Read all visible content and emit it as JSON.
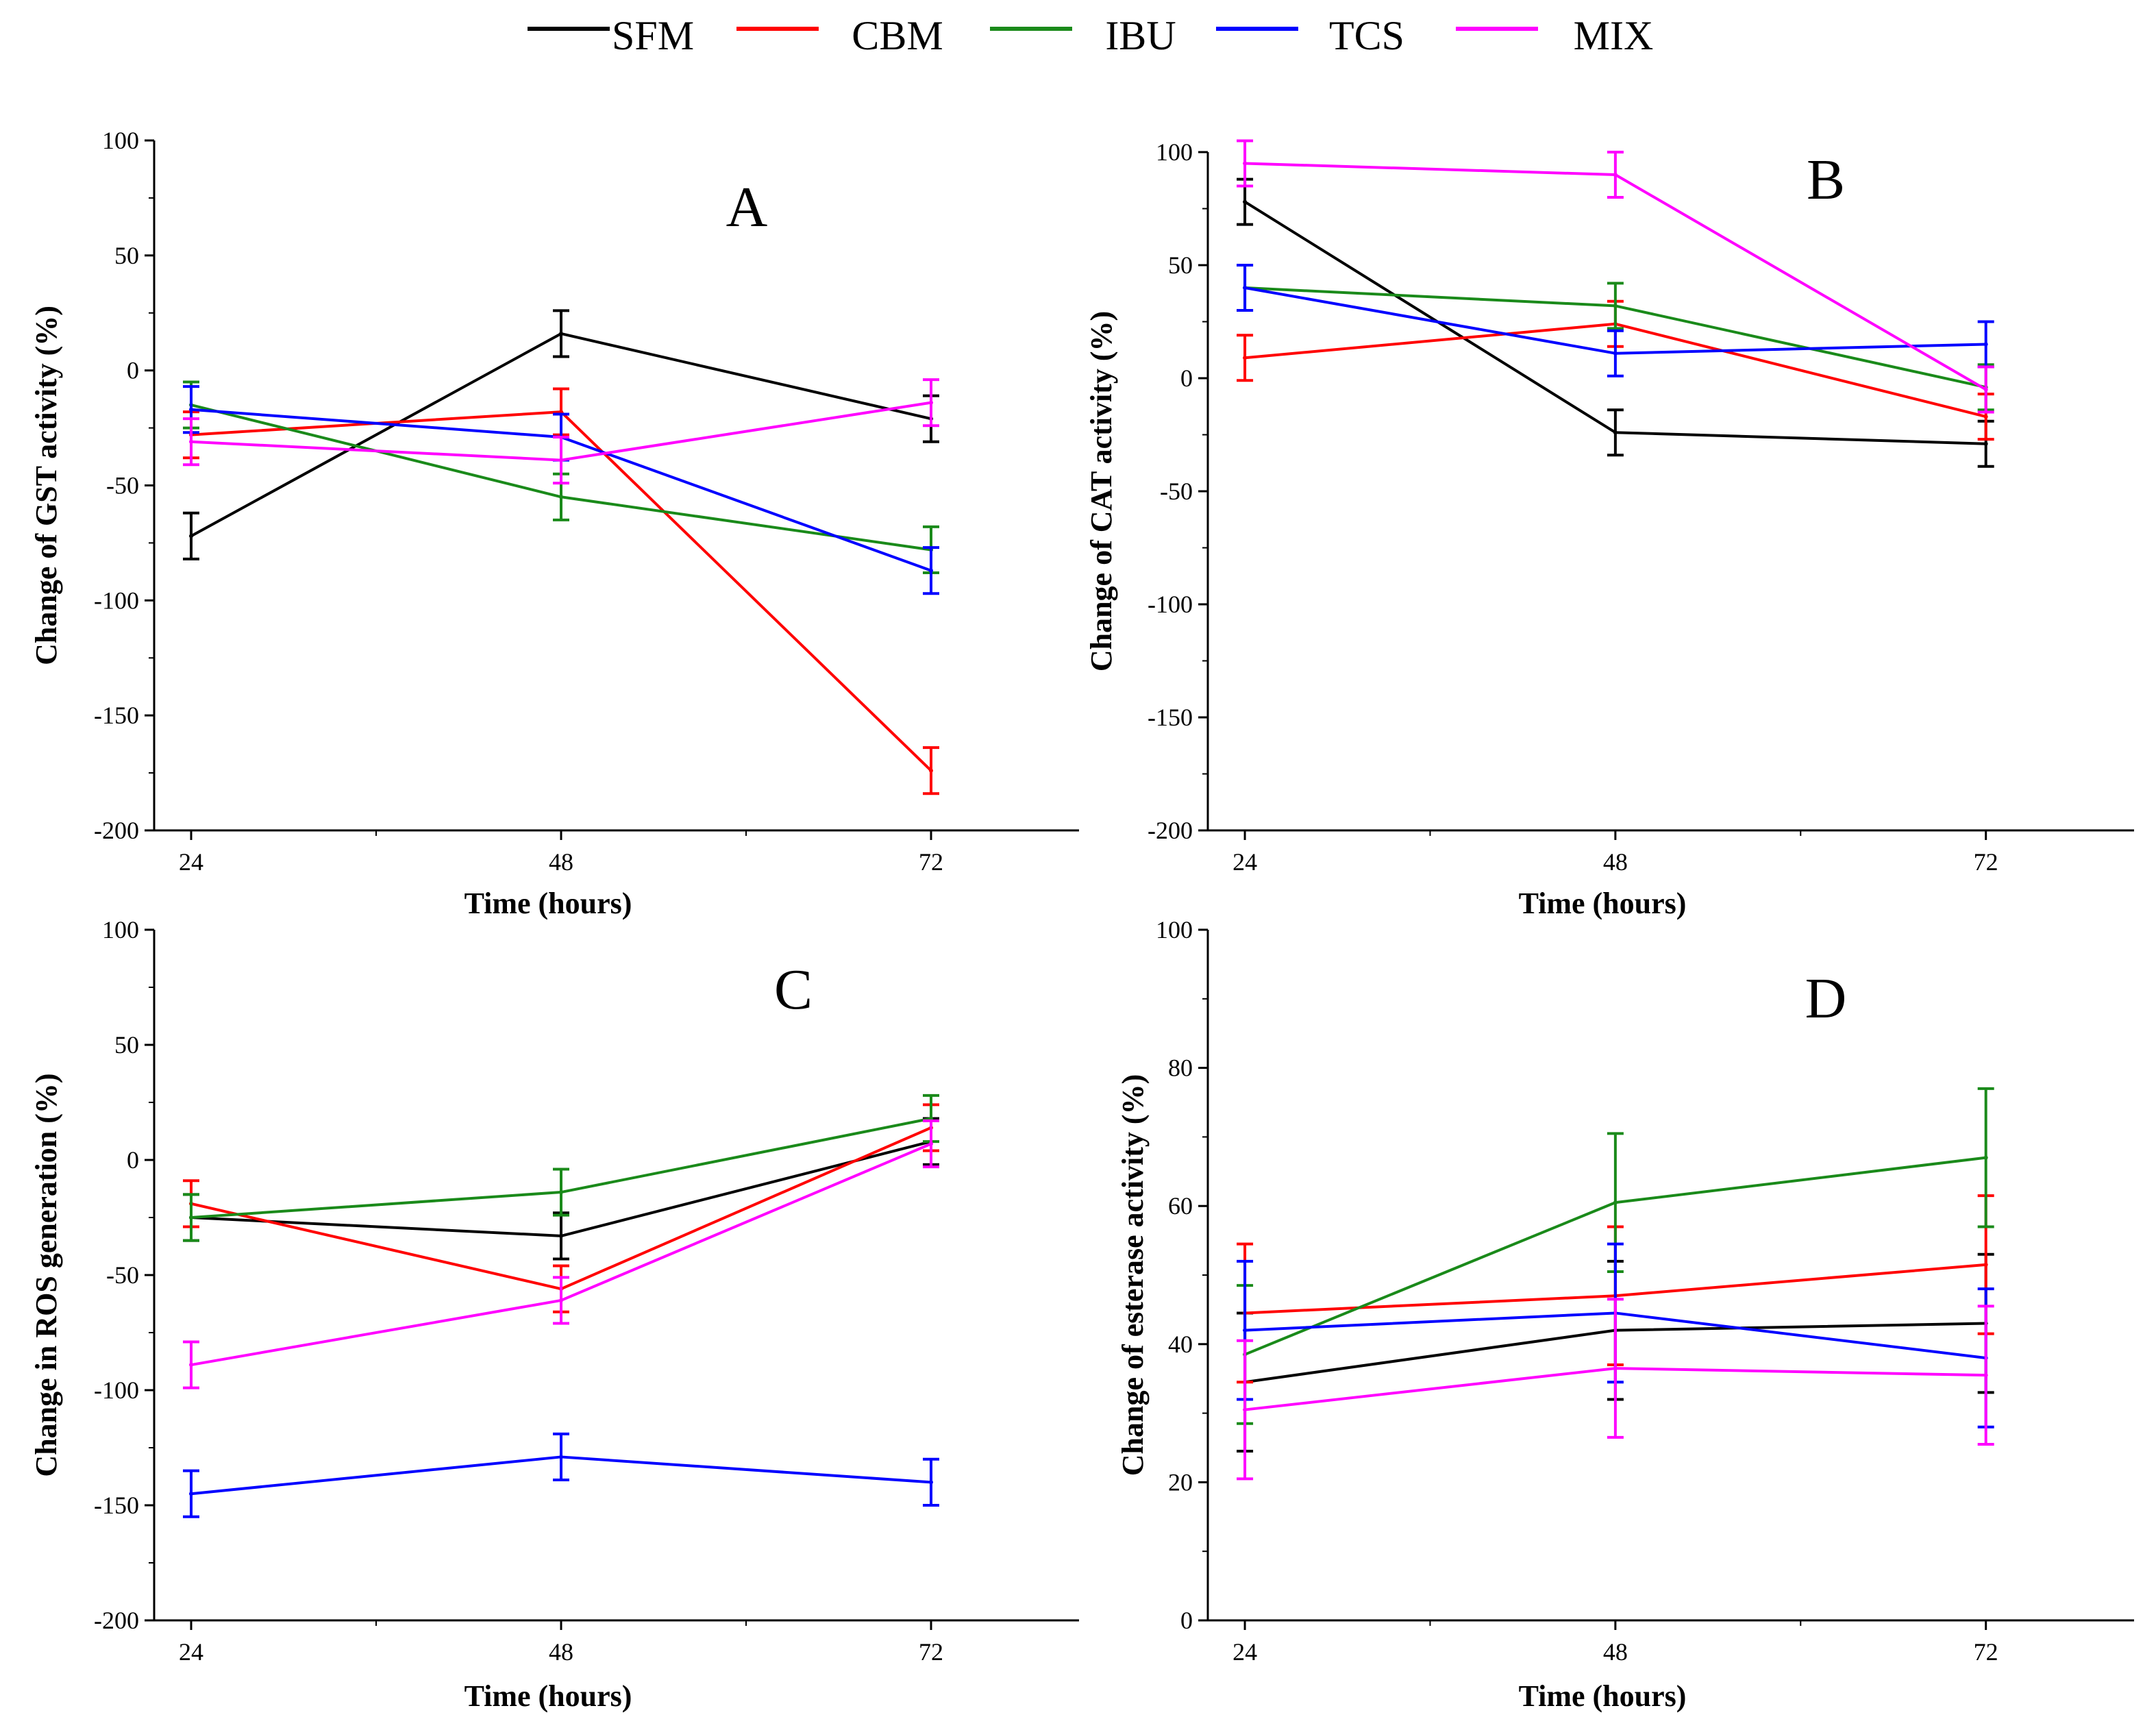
{
  "legend": [
    {
      "name": "SFM",
      "color": "#000000"
    },
    {
      "name": "CBM",
      "color": "#ff0000"
    },
    {
      "name": "IBU",
      "color": "#1a8a1a"
    },
    {
      "name": "TCS",
      "color": "#0000ff"
    },
    {
      "name": "MIX",
      "color": "#ff00ff"
    }
  ],
  "chart_data": [
    {
      "panel": "A",
      "type": "line",
      "x": [
        24,
        48,
        72
      ],
      "xlabel": "Time (hours)",
      "ylabel": "Change of GST activity (%)",
      "ylim": [
        -200,
        100
      ],
      "yticks": [
        100,
        50,
        0,
        -50,
        -100,
        -150,
        -200
      ],
      "series": [
        {
          "name": "SFM",
          "values": [
            -72,
            16,
            -21
          ],
          "errors": [
            10,
            10,
            10
          ]
        },
        {
          "name": "CBM",
          "values": [
            -28,
            -18,
            -174
          ],
          "errors": [
            10,
            10,
            10
          ]
        },
        {
          "name": "IBU",
          "values": [
            -15,
            -55,
            -78
          ],
          "errors": [
            10,
            10,
            10
          ]
        },
        {
          "name": "TCS",
          "values": [
            -17,
            -29,
            -87
          ],
          "errors": [
            10,
            10,
            10
          ]
        },
        {
          "name": "MIX",
          "values": [
            -31,
            -39,
            -14
          ],
          "errors": [
            10,
            10,
            10
          ]
        }
      ]
    },
    {
      "panel": "B",
      "type": "line",
      "x": [
        24,
        48,
        72
      ],
      "xlabel": "Time (hours)",
      "ylabel": "Change of CAT activity (%)",
      "ylim": [
        -200,
        100
      ],
      "yticks": [
        100,
        50,
        0,
        -50,
        -100,
        -150,
        -200
      ],
      "series": [
        {
          "name": "SFM",
          "values": [
            78,
            -24,
            -29
          ],
          "errors": [
            10,
            10,
            10
          ]
        },
        {
          "name": "CBM",
          "values": [
            9,
            24,
            -17
          ],
          "errors": [
            10,
            10,
            10
          ]
        },
        {
          "name": "IBU",
          "values": [
            40,
            32,
            -4
          ],
          "errors": [
            10,
            10,
            10
          ]
        },
        {
          "name": "TCS",
          "values": [
            40,
            11,
            15
          ],
          "errors": [
            10,
            10,
            10
          ]
        },
        {
          "name": "MIX",
          "values": [
            95,
            90,
            -5
          ],
          "errors": [
            10,
            10,
            10
          ]
        }
      ]
    },
    {
      "panel": "C",
      "type": "line",
      "x": [
        24,
        48,
        72
      ],
      "xlabel": "Time (hours)",
      "ylabel": "Change in ROS generation (%)",
      "ylim": [
        -200,
        100
      ],
      "yticks": [
        100,
        50,
        0,
        -50,
        -100,
        -150,
        -200
      ],
      "series": [
        {
          "name": "SFM",
          "values": [
            -25,
            -33,
            8
          ],
          "errors": [
            10,
            10,
            10
          ]
        },
        {
          "name": "CBM",
          "values": [
            -19,
            -56,
            14
          ],
          "errors": [
            10,
            10,
            10
          ]
        },
        {
          "name": "IBU",
          "values": [
            -25,
            -14,
            18
          ],
          "errors": [
            10,
            10,
            10
          ]
        },
        {
          "name": "TCS",
          "values": [
            -145,
            -129,
            -140
          ],
          "errors": [
            10,
            10,
            10
          ]
        },
        {
          "name": "MIX",
          "values": [
            -89,
            -61,
            7
          ],
          "errors": [
            10,
            10,
            10
          ]
        }
      ]
    },
    {
      "panel": "D",
      "type": "line",
      "x": [
        24,
        48,
        72
      ],
      "xlabel": "Time (hours)",
      "ylabel": "Change of esterase activity (%)",
      "ylim": [
        0,
        100
      ],
      "yticks": [
        100,
        80,
        60,
        40,
        20,
        0
      ],
      "series": [
        {
          "name": "SFM",
          "values": [
            34.5,
            42,
            43
          ],
          "errors": [
            10,
            10,
            10
          ]
        },
        {
          "name": "CBM",
          "values": [
            44.5,
            47,
            51.5
          ],
          "errors": [
            10,
            10,
            10
          ]
        },
        {
          "name": "IBU",
          "values": [
            38.5,
            60.5,
            67
          ],
          "errors": [
            10,
            10,
            10
          ]
        },
        {
          "name": "TCS",
          "values": [
            42,
            44.5,
            38
          ],
          "errors": [
            10,
            10,
            10
          ]
        },
        {
          "name": "MIX",
          "values": [
            30.5,
            36.5,
            35.5
          ],
          "errors": [
            10,
            10,
            10
          ]
        }
      ]
    }
  ]
}
